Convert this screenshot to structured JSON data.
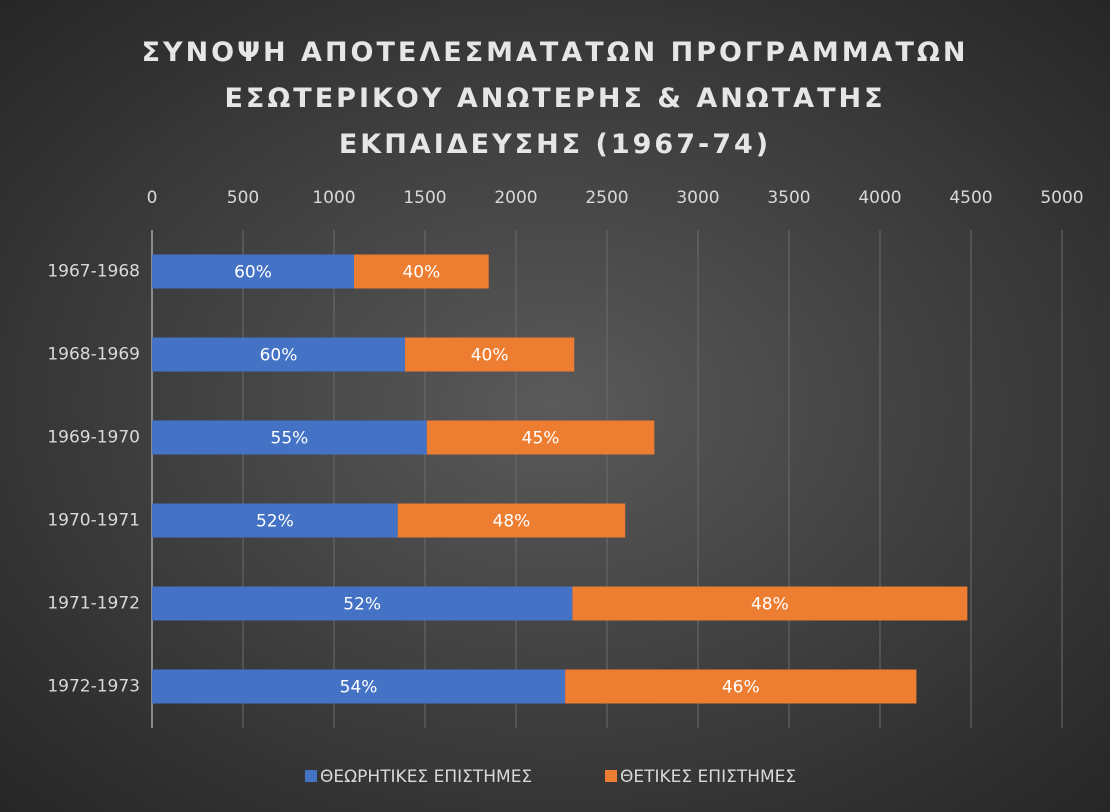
{
  "chart_data": {
    "type": "stacked_bar_horizontal",
    "title": "ΣΥΝΟΨΗ ΑΠΟΤΕΛΕΣΜΑΤΑΤΩΝ ΠΡΟΓΡΑΜΜΑΤΩΝ ΕΣΩΤΕΡΙΚΟΥ ΑΝΩΤΕΡΗΣ & ΑΝΩΤΑΤΗΣ ΕΚΠΑΙΔΕΥΣΗΣ (1967-74)",
    "categories": [
      "1967-1968",
      "1968-1969",
      "1969-1970",
      "1970-1971",
      "1971-1972",
      "1972-1973"
    ],
    "series": [
      {
        "name": "ΘΕΩΡΗΤΙΚΕΣ ΕΠΙΣΤΗΜΕΣ",
        "color": "#4472c4",
        "values": [
          1110,
          1390,
          1510,
          1350,
          2310,
          2270
        ],
        "value_labels": [
          "60%",
          "60%",
          "55%",
          "52%",
          "52%",
          "54%"
        ]
      },
      {
        "name": "ΘΕΤΙΚΕΣ ΕΠΙΣΤΗΜΕΣ",
        "color": "#ed7d31",
        "values": [
          740,
          930,
          1250,
          1250,
          2170,
          1930
        ],
        "value_labels": [
          "40%",
          "40%",
          "45%",
          "48%",
          "48%",
          "46%"
        ]
      }
    ],
    "xlim": [
      0,
      5000
    ],
    "xticks": [
      0,
      500,
      1000,
      1500,
      2000,
      2500,
      3000,
      3500,
      4000,
      4500,
      5000
    ],
    "grid": true,
    "legend": "bottom"
  }
}
